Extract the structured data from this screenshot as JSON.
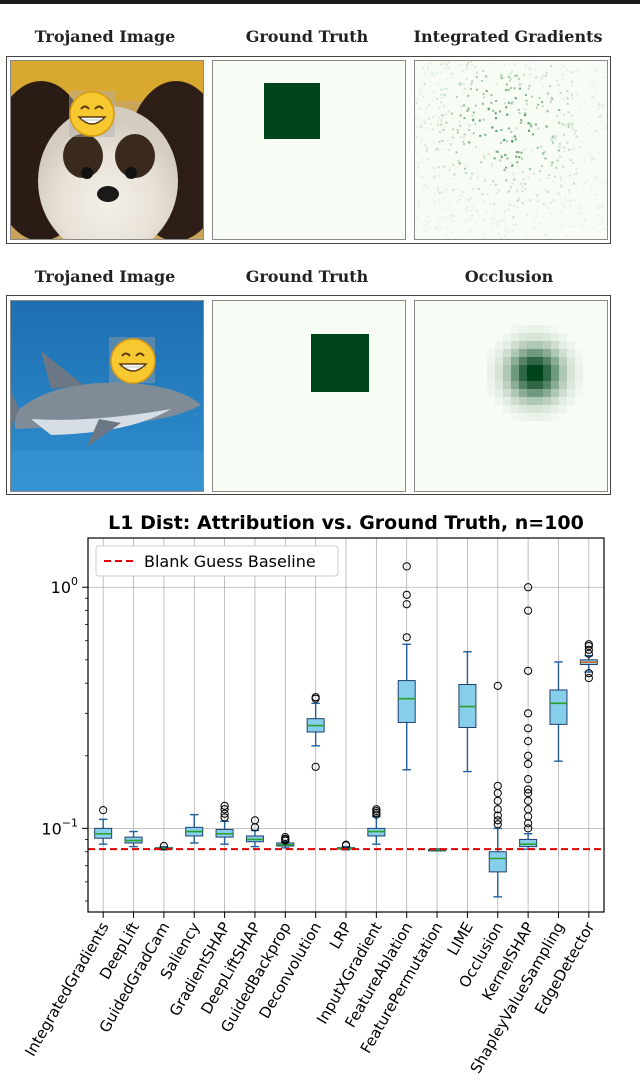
{
  "panels_row1": {
    "titles": [
      "Trojaned Image",
      "Ground Truth",
      "Integrated Gradients"
    ]
  },
  "panels_row2": {
    "titles": [
      "Trojaned Image",
      "Ground Truth",
      "Occlusion"
    ]
  },
  "colors": {
    "map_background": "#f7fcf5",
    "map_dark": "#00441b",
    "box_fill": "#87ceeb",
    "median": "#2ca02c",
    "baseline": "#e00000"
  },
  "chart_data": {
    "type": "boxplot",
    "title": "L1 Dist: Attribution vs. Ground Truth, n=100",
    "y_scale": "log",
    "ylim": [
      0.045,
      1.6
    ],
    "y_ticks": [
      {
        "value": 1.0,
        "base": "10",
        "exp": "0"
      },
      {
        "value": 0.1,
        "base": "10",
        "exp": "−1"
      }
    ],
    "grid": true,
    "legend": {
      "position": "top-left",
      "entries": [
        "Blank Guess Baseline"
      ]
    },
    "baseline": {
      "name": "Blank Guess Baseline",
      "value": 0.082
    },
    "categories": [
      "IntegratedGradients",
      "DeepLift",
      "GuidedGradCam",
      "Saliency",
      "GradientSHAP",
      "DeepLiftSHAP",
      "GuidedBackprop",
      "Deconvolution",
      "LRP",
      "InputXGradient",
      "FeatureAblation",
      "FeaturePermutation",
      "LIME",
      "Occlusion",
      "KernelSHAP",
      "ShapleyValueSampling",
      "EdgeDetector"
    ],
    "boxes": [
      {
        "whislo": 0.086,
        "q1": 0.091,
        "med": 0.095,
        "q3": 0.1,
        "whishi": 0.109,
        "fliers": [
          0.119
        ]
      },
      {
        "whislo": 0.084,
        "q1": 0.087,
        "med": 0.089,
        "q3": 0.092,
        "whishi": 0.097,
        "fliers": []
      },
      {
        "whislo": 0.0815,
        "q1": 0.0822,
        "med": 0.0826,
        "q3": 0.0832,
        "whishi": 0.084,
        "fliers": [
          0.0845
        ]
      },
      {
        "whislo": 0.087,
        "q1": 0.093,
        "med": 0.097,
        "q3": 0.101,
        "whishi": 0.114,
        "fliers": []
      },
      {
        "whislo": 0.086,
        "q1": 0.092,
        "med": 0.095,
        "q3": 0.099,
        "whishi": 0.107,
        "fliers": [
          0.111,
          0.115,
          0.12,
          0.124
        ]
      },
      {
        "whislo": 0.084,
        "q1": 0.088,
        "med": 0.09,
        "q3": 0.093,
        "whishi": 0.098,
        "fliers": [
          0.101,
          0.108
        ]
      },
      {
        "whislo": 0.083,
        "q1": 0.0845,
        "med": 0.0855,
        "q3": 0.087,
        "whishi": 0.088,
        "fliers": [
          0.089,
          0.09,
          0.0905,
          0.092
        ]
      },
      {
        "whislo": 0.22,
        "q1": 0.251,
        "med": 0.267,
        "q3": 0.285,
        "whishi": 0.33,
        "fliers": [
          0.18,
          0.345,
          0.35
        ]
      },
      {
        "whislo": 0.0815,
        "q1": 0.0822,
        "med": 0.0826,
        "q3": 0.0832,
        "whishi": 0.084,
        "fliers": [
          0.085,
          0.0855
        ]
      },
      {
        "whislo": 0.086,
        "q1": 0.093,
        "med": 0.097,
        "q3": 0.1,
        "whishi": 0.112,
        "fliers": [
          0.114,
          0.116,
          0.118,
          0.12
        ]
      },
      {
        "whislo": 0.175,
        "q1": 0.275,
        "med": 0.345,
        "q3": 0.41,
        "whishi": 0.58,
        "fliers": [
          0.62,
          0.85,
          0.93,
          1.22
        ]
      },
      {
        "whislo": 0.0808,
        "q1": 0.0812,
        "med": 0.0815,
        "q3": 0.0818,
        "whishi": 0.0822,
        "fliers": []
      },
      {
        "whislo": 0.172,
        "q1": 0.262,
        "med": 0.32,
        "q3": 0.395,
        "whishi": 0.54,
        "fliers": []
      },
      {
        "whislo": 0.052,
        "q1": 0.066,
        "med": 0.075,
        "q3": 0.08,
        "whishi": 0.1,
        "fliers": [
          0.104,
          0.108,
          0.113,
          0.12,
          0.13,
          0.14,
          0.15,
          0.39
        ]
      },
      {
        "whislo": 0.082,
        "q1": 0.084,
        "med": 0.086,
        "q3": 0.09,
        "whishi": 0.095,
        "fliers": [
          0.1,
          0.105,
          0.112,
          0.12,
          0.13,
          0.14,
          0.145,
          0.16,
          0.185,
          0.2,
          0.23,
          0.26,
          0.3,
          0.45,
          0.8,
          1.0
        ]
      },
      {
        "whislo": 0.19,
        "q1": 0.27,
        "med": 0.33,
        "q3": 0.375,
        "whishi": 0.49,
        "fliers": []
      },
      {
        "whislo": 0.445,
        "q1": 0.478,
        "med": 0.489,
        "q3": 0.5,
        "whishi": 0.52,
        "fliers": [
          0.42,
          0.44,
          0.53,
          0.55,
          0.57,
          0.58
        ]
      }
    ]
  }
}
